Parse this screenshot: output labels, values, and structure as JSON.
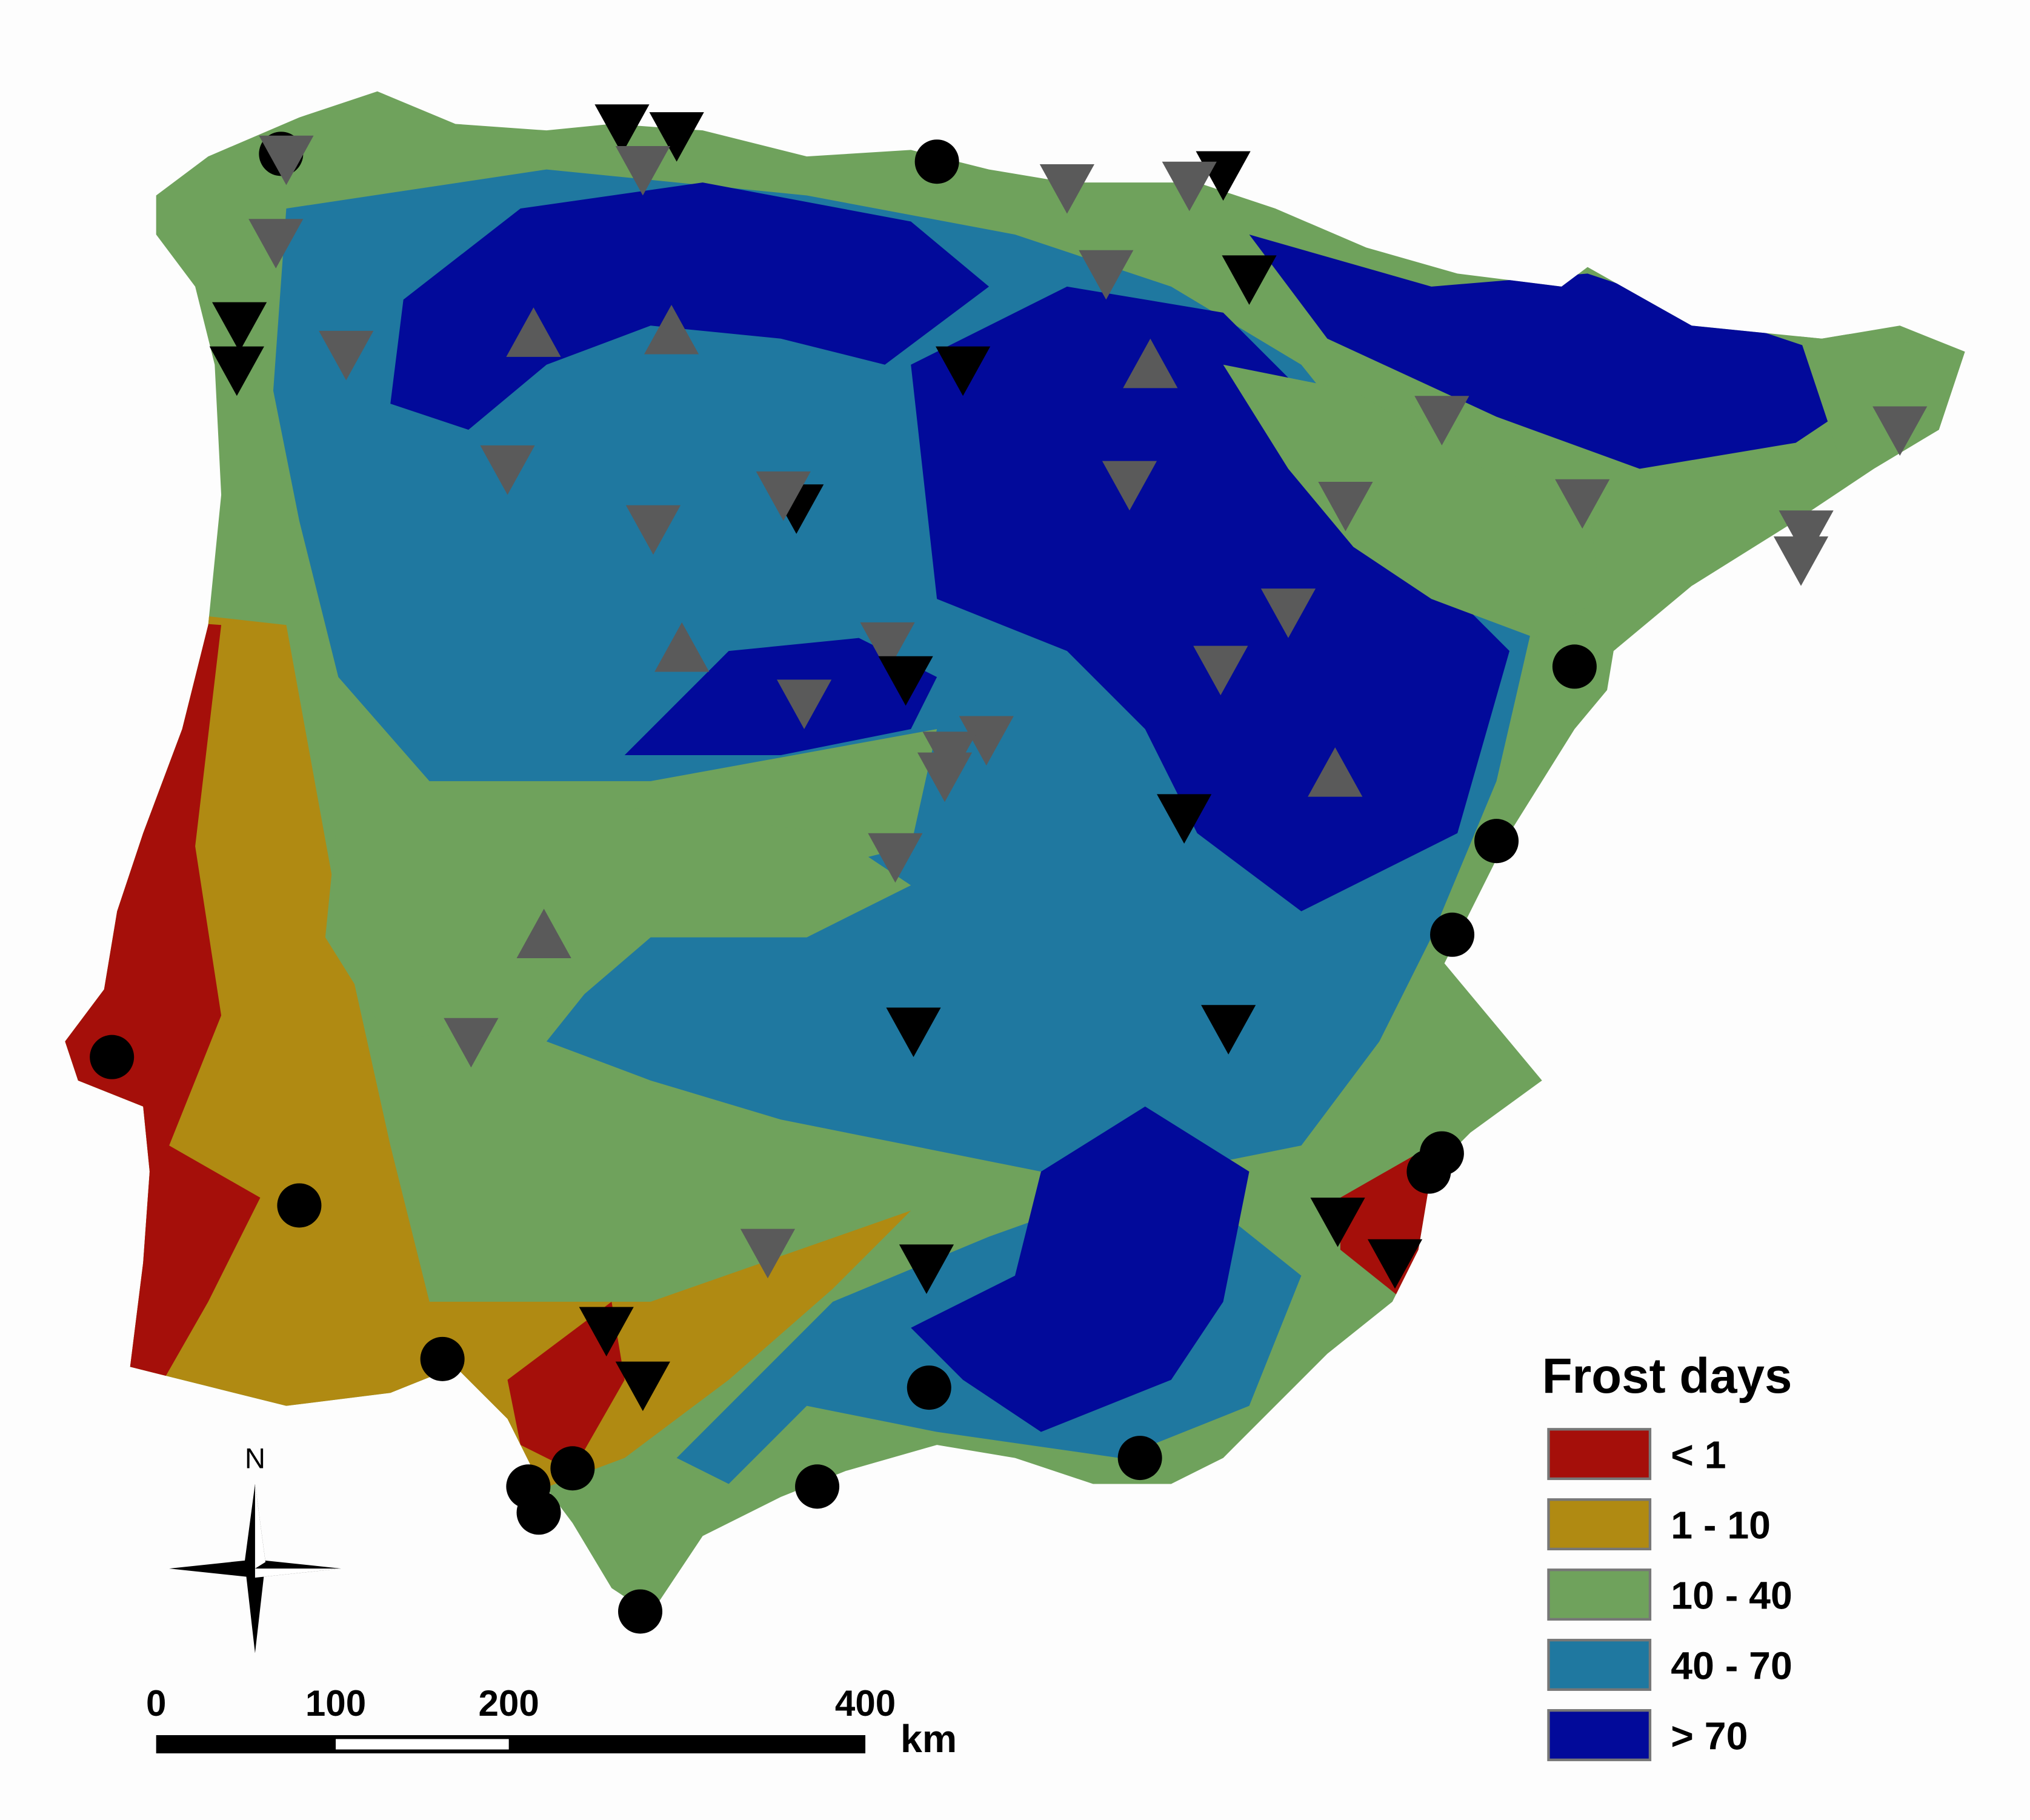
{
  "map": {
    "legend": {
      "title": "Frost days",
      "items": [
        {
          "label": "< 1",
          "color": "#a50f0a"
        },
        {
          "label": "1 - 10",
          "color": "#b08a12"
        },
        {
          "label": "10 - 40",
          "color": "#6fa25c"
        },
        {
          "label": "40 - 70",
          "color": "#1f78a0"
        },
        {
          "label": "> 70",
          "color": "#020a9a"
        }
      ]
    },
    "compass": "N",
    "scale_bar": {
      "labels": [
        "0",
        "100",
        "200",
        "400"
      ],
      "unit": "km"
    }
  }
}
